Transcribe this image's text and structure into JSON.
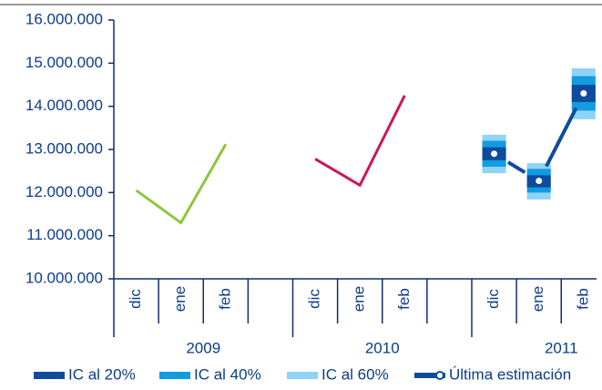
{
  "chart_data": {
    "type": "line",
    "groups": [
      "2009",
      "2010",
      "2011"
    ],
    "categories": [
      "dic",
      "ene",
      "feb"
    ],
    "ylim": [
      10000000,
      16000000
    ],
    "yticks": [
      {
        "value": 10000000,
        "label": "10.000.000"
      },
      {
        "value": 11000000,
        "label": "11.000.000"
      },
      {
        "value": 12000000,
        "label": "12.000.000"
      },
      {
        "value": 13000000,
        "label": "13.000.000"
      },
      {
        "value": 14000000,
        "label": "14.000.000"
      },
      {
        "value": 15000000,
        "label": "15.000.000"
      },
      {
        "value": 16000000,
        "label": "16.000.000"
      }
    ],
    "series": [
      {
        "color": "#8dc63f",
        "values": [
          12050000,
          11300000,
          13120000
        ]
      },
      {
        "color": "#c8175e",
        "values": [
          12780000,
          12170000,
          14250000
        ]
      }
    ],
    "intervals": [
      {
        "name": "IC al 60%",
        "color": "#8fd3f5",
        "low": [
          12450000,
          11840000,
          13700000
        ],
        "high": [
          13340000,
          12680000,
          14880000
        ]
      },
      {
        "name": "IC al 40%",
        "color": "#129be0",
        "low": [
          12600000,
          12000000,
          13900000
        ],
        "high": [
          13200000,
          12550000,
          14700000
        ]
      },
      {
        "name": "IC al 20%",
        "color": "#0d4c9c",
        "low": [
          12750000,
          12120000,
          14100000
        ],
        "high": [
          13050000,
          12400000,
          14500000
        ]
      }
    ],
    "estimate": {
      "name": "Última estimación",
      "color": "#0d4c9c",
      "values": [
        12900000,
        12270000,
        14300000
      ]
    },
    "legend": [
      "IC al 20%",
      "IC al 40%",
      "IC al 60%",
      "Última estimación"
    ]
  }
}
